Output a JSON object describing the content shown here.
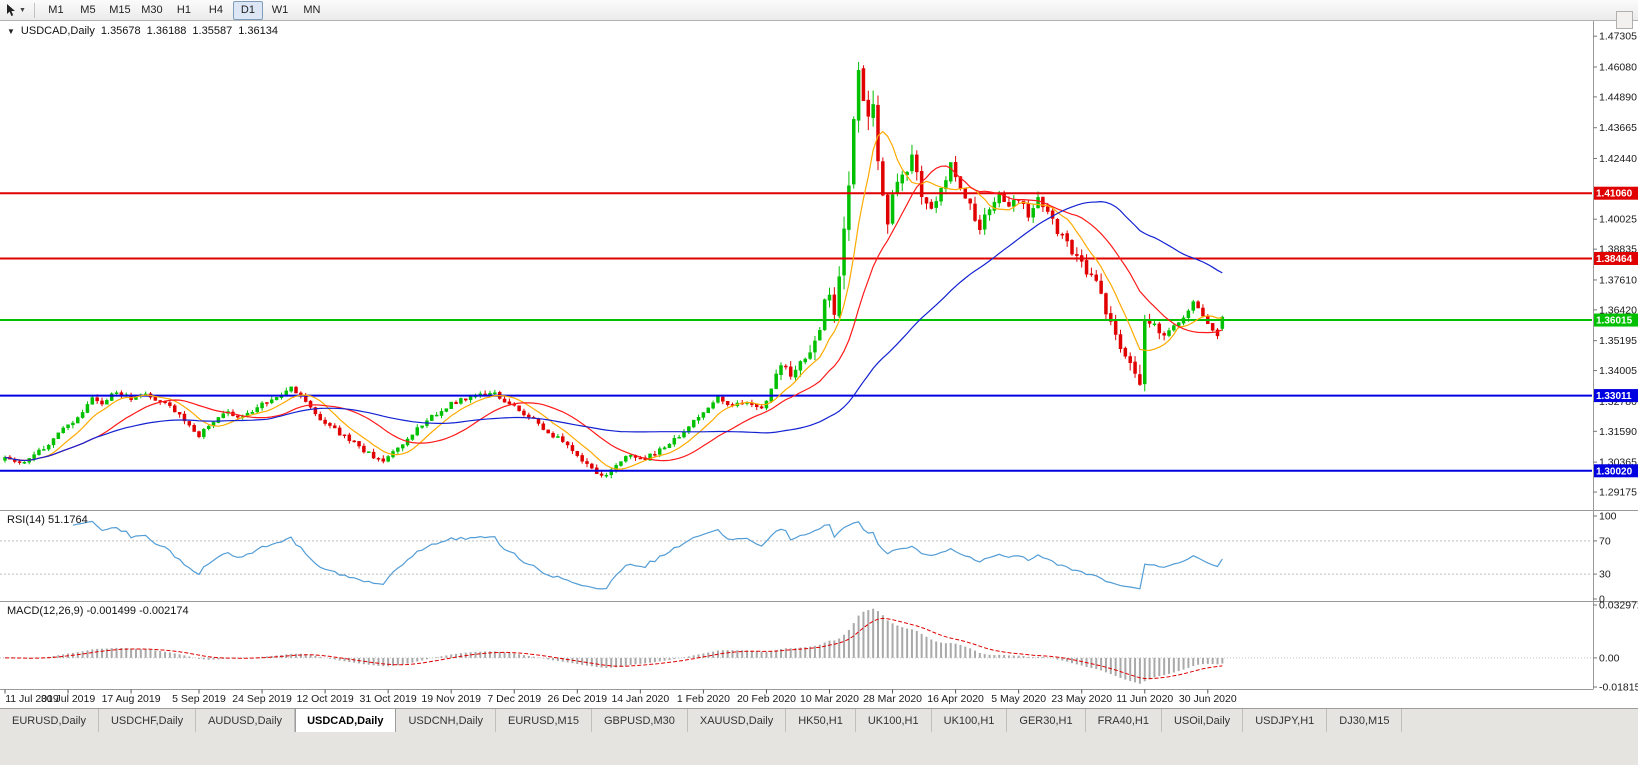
{
  "toolbar": {
    "timeframes": [
      "M1",
      "M5",
      "M15",
      "M30",
      "H1",
      "H4",
      "D1",
      "W1",
      "MN"
    ],
    "active_timeframe": "D1"
  },
  "chart": {
    "title": {
      "symbol_period": "USDCAD,Daily",
      "open": "1.35678",
      "high": "1.36188",
      "low": "1.35587",
      "close": "1.36134"
    }
  },
  "chart_data": {
    "type": "candlestick",
    "symbol": "USDCAD",
    "period": "Daily",
    "last_ohlc": {
      "open": 1.35678,
      "high": 1.36188,
      "low": 1.35587,
      "close": 1.36134
    },
    "y_axis": {
      "min": 1.285,
      "max": 1.4775,
      "labels": [
        "1.47305",
        "1.46080",
        "1.44890",
        "1.43665",
        "1.42440",
        "1.40025",
        "1.38835",
        "1.37610",
        "1.36420",
        "1.35195",
        "1.34005",
        "1.32780",
        "1.31590",
        "1.30365",
        "1.29175"
      ]
    },
    "horizontal_lines": [
      {
        "price": 1.4106,
        "label": "1.41060",
        "color": "#e00000",
        "type": "resistance"
      },
      {
        "price": 1.38464,
        "label": "1.38464",
        "color": "#e00000",
        "type": "resistance"
      },
      {
        "price": 1.36015,
        "label": "1.36015",
        "color": "#00c000",
        "type": "current-level"
      },
      {
        "price": 1.33011,
        "label": "1.33011",
        "color": "#0000e0",
        "type": "support"
      },
      {
        "price": 1.3002,
        "label": "1.30020",
        "color": "#0000e0",
        "type": "support"
      }
    ],
    "x_axis": {
      "labels": [
        [
          "11 Jul 2019",
          0
        ],
        [
          "30 Jul 2019",
          13
        ],
        [
          "17 Aug 2019",
          26
        ],
        [
          "5 Sep 2019",
          40
        ],
        [
          "24 Sep 2019",
          53
        ],
        [
          "12 Oct 2019",
          66
        ],
        [
          "31 Oct 2019",
          79
        ],
        [
          "19 Nov 2019",
          92
        ],
        [
          "7 Dec 2019",
          105
        ],
        [
          "26 Dec 2019",
          118
        ],
        [
          "14 Jan 2020",
          131
        ],
        [
          "1 Feb 2020",
          144
        ],
        [
          "20 Feb 2020",
          157
        ],
        [
          "10 Mar 2020",
          170
        ],
        [
          "28 Mar 2020",
          183
        ],
        [
          "16 Apr 2020",
          196
        ],
        [
          "5 May 2020",
          209
        ],
        [
          "23 May 2020",
          222
        ],
        [
          "11 Jun 2020",
          235
        ],
        [
          "30 Jun 2020",
          248
        ]
      ]
    },
    "candles": {
      "count": 252,
      "seed": 11,
      "up_color": "#00c000",
      "down_color": "#e00000",
      "close_anchors": [
        [
          0,
          1.3055
        ],
        [
          3,
          1.303
        ],
        [
          6,
          1.3065
        ],
        [
          9,
          1.311
        ],
        [
          13,
          1.3185
        ],
        [
          16,
          1.323
        ],
        [
          18,
          1.33
        ],
        [
          20,
          1.3265
        ],
        [
          23,
          1.332
        ],
        [
          26,
          1.3285
        ],
        [
          29,
          1.331
        ],
        [
          32,
          1.3275
        ],
        [
          35,
          1.3245
        ],
        [
          38,
          1.3175
        ],
        [
          40,
          1.3145
        ],
        [
          43,
          1.32
        ],
        [
          46,
          1.3235
        ],
        [
          49,
          1.3215
        ],
        [
          53,
          1.3265
        ],
        [
          56,
          1.3295
        ],
        [
          59,
          1.333
        ],
        [
          62,
          1.328
        ],
        [
          64,
          1.323
        ],
        [
          66,
          1.3195
        ],
        [
          69,
          1.315
        ],
        [
          72,
          1.311
        ],
        [
          75,
          1.307
        ],
        [
          78,
          1.3035
        ],
        [
          81,
          1.309
        ],
        [
          84,
          1.315
        ],
        [
          87,
          1.32
        ],
        [
          90,
          1.3245
        ],
        [
          92,
          1.327
        ],
        [
          95,
          1.329
        ],
        [
          98,
          1.3305
        ],
        [
          101,
          1.331
        ],
        [
          103,
          1.328
        ],
        [
          105,
          1.3255
        ],
        [
          108,
          1.322
        ],
        [
          111,
          1.317
        ],
        [
          114,
          1.313
        ],
        [
          117,
          1.3085
        ],
        [
          120,
          1.303
        ],
        [
          122,
          1.299
        ],
        [
          124,
          1.2985
        ],
        [
          126,
          1.303
        ],
        [
          129,
          1.3065
        ],
        [
          132,
          1.3055
        ],
        [
          135,
          1.3085
        ],
        [
          138,
          1.3125
        ],
        [
          141,
          1.3175
        ],
        [
          144,
          1.3235
        ],
        [
          147,
          1.329
        ],
        [
          150,
          1.326
        ],
        [
          153,
          1.327
        ],
        [
          156,
          1.3245
        ],
        [
          158,
          1.333
        ],
        [
          160,
          1.343
        ],
        [
          162,
          1.339
        ],
        [
          164,
          1.342
        ],
        [
          166,
          1.347
        ],
        [
          168,
          1.356
        ],
        [
          169,
          1.366
        ],
        [
          170,
          1.372
        ],
        [
          171,
          1.363
        ],
        [
          172,
          1.378
        ],
        [
          173,
          1.396
        ],
        [
          174,
          1.414
        ],
        [
          175,
          1.438
        ],
        [
          176,
          1.458
        ],
        [
          177,
          1.447
        ],
        [
          178,
          1.44
        ],
        [
          179,
          1.448
        ],
        [
          180,
          1.425
        ],
        [
          181,
          1.407
        ],
        [
          182,
          1.401
        ],
        [
          183,
          1.409
        ],
        [
          185,
          1.419
        ],
        [
          187,
          1.424
        ],
        [
          189,
          1.411
        ],
        [
          191,
          1.404
        ],
        [
          193,
          1.411
        ],
        [
          195,
          1.423
        ],
        [
          197,
          1.414
        ],
        [
          199,
          1.405
        ],
        [
          201,
          1.397
        ],
        [
          203,
          1.405
        ],
        [
          205,
          1.411
        ],
        [
          207,
          1.406
        ],
        [
          209,
          1.409
        ],
        [
          211,
          1.401
        ],
        [
          213,
          1.409
        ],
        [
          215,
          1.403
        ],
        [
          217,
          1.396
        ],
        [
          219,
          1.391
        ],
        [
          221,
          1.385
        ],
        [
          223,
          1.38
        ],
        [
          225,
          1.375
        ],
        [
          227,
          1.364
        ],
        [
          229,
          1.353
        ],
        [
          231,
          1.345
        ],
        [
          233,
          1.34
        ],
        [
          234,
          1.336
        ],
        [
          235,
          1.361
        ],
        [
          237,
          1.358
        ],
        [
          239,
          1.354
        ],
        [
          241,
          1.357
        ],
        [
          243,
          1.362
        ],
        [
          245,
          1.3665
        ],
        [
          246,
          1.364
        ],
        [
          248,
          1.359
        ],
        [
          249,
          1.3555
        ],
        [
          250,
          1.354
        ],
        [
          251,
          1.3613
        ]
      ],
      "volatility_anchors": [
        [
          0,
          0.8
        ],
        [
          150,
          0.8
        ],
        [
          158,
          1.1
        ],
        [
          166,
          1.7
        ],
        [
          170,
          2.4
        ],
        [
          174,
          3.4
        ],
        [
          176,
          4.0
        ],
        [
          178,
          3.2
        ],
        [
          183,
          2.6
        ],
        [
          190,
          2.0
        ],
        [
          200,
          1.6
        ],
        [
          212,
          1.3
        ],
        [
          222,
          1.6
        ],
        [
          230,
          1.8
        ],
        [
          234,
          2.3
        ],
        [
          236,
          1.5
        ],
        [
          244,
          1.0
        ],
        [
          251,
          0.9
        ]
      ]
    },
    "moving_averages": [
      {
        "name": "ma-fast",
        "period": 8,
        "color": "#ffaa00"
      },
      {
        "name": "ma-mid",
        "period": 20,
        "color": "#ff1a1a"
      },
      {
        "name": "ma-slow",
        "period": 55,
        "color": "#1322d2"
      }
    ],
    "rsi": {
      "label": "RSI(14) 51.1764",
      "period": 14,
      "value": 51.1764,
      "color": "#539dd6",
      "axis_labels": [
        100,
        70,
        30,
        0
      ],
      "level_lines": [
        70,
        30
      ]
    },
    "macd": {
      "label": "MACD(12,26,9) -0.001499 -0.002174",
      "fast": 12,
      "slow": 26,
      "signal_period": 9,
      "macd_value": -0.001499,
      "signal_value": -0.002174,
      "axis_labels": [
        "0.032972",
        "0.00",
        "-0.01815"
      ],
      "max": 0.032972,
      "min": -0.01815,
      "histogram_color": "#a9a9a9",
      "signal_color": "#e00000"
    }
  },
  "tabbar": {
    "tabs": [
      {
        "label": "EURUSD,Daily",
        "active": false
      },
      {
        "label": "USDCHF,Daily",
        "active": false
      },
      {
        "label": "AUDUSD,Daily",
        "active": false
      },
      {
        "label": "USDCAD,Daily",
        "active": true
      },
      {
        "label": "USDCNH,Daily",
        "active": false
      },
      {
        "label": "EURUSD,M15",
        "active": false
      },
      {
        "label": "GBPUSD,M30",
        "active": false
      },
      {
        "label": "XAUUSD,Daily",
        "active": false
      },
      {
        "label": "HK50,H1",
        "active": false
      },
      {
        "label": "UK100,H1",
        "active": false
      },
      {
        "label": "UK100,H1",
        "active": false
      },
      {
        "label": "GER30,H1",
        "active": false
      },
      {
        "label": "FRA40,H1",
        "active": false
      },
      {
        "label": "USOil,Daily",
        "active": false
      },
      {
        "label": "USDJPY,H1",
        "active": false
      },
      {
        "label": "DJ30,M15",
        "active": false
      }
    ]
  }
}
